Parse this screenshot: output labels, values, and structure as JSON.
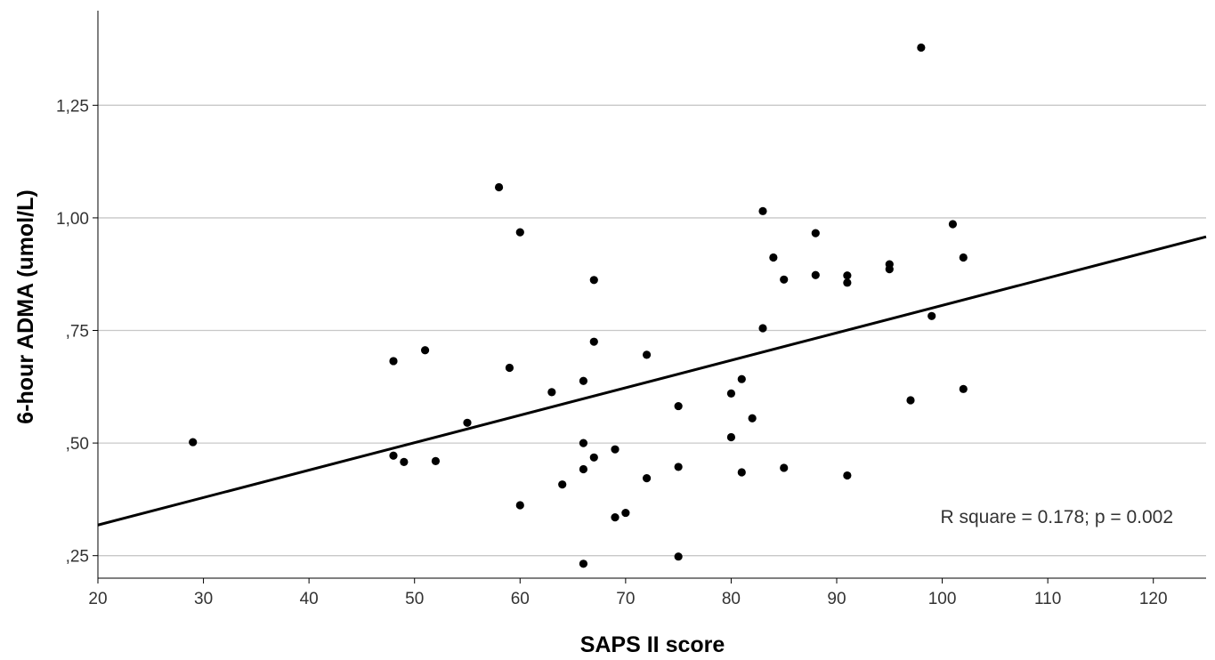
{
  "chart_data": {
    "type": "scatter",
    "xlabel": "SAPS II score",
    "ylabel": "6-hour ADMA (umol/L)",
    "xlim": [
      20,
      125
    ],
    "ylim": [
      0.2,
      1.46
    ],
    "x_ticks": [
      20,
      30,
      40,
      50,
      60,
      70,
      80,
      90,
      100,
      110,
      120
    ],
    "x_tick_labels": [
      "20",
      "30",
      "40",
      "50",
      "60",
      "70",
      "80",
      "90",
      "100",
      "110",
      "120"
    ],
    "y_ticks": [
      0.25,
      0.5,
      0.75,
      1.0,
      1.25
    ],
    "y_tick_labels": [
      ",25",
      ",50",
      ",75",
      "1,00",
      "1,25"
    ],
    "grid": "horizontal",
    "annotation": "R square = 0.178; p = 0.002",
    "fit_line": {
      "x": [
        20,
        125
      ],
      "y": [
        0.318,
        0.958
      ]
    },
    "points": [
      [
        29,
        0.502
      ],
      [
        48,
        0.682
      ],
      [
        48,
        0.472
      ],
      [
        49,
        0.458
      ],
      [
        51,
        0.706
      ],
      [
        52,
        0.46
      ],
      [
        55,
        0.545
      ],
      [
        58,
        1.068
      ],
      [
        59,
        0.667
      ],
      [
        60,
        0.968
      ],
      [
        60,
        0.362
      ],
      [
        63,
        0.613
      ],
      [
        64,
        0.408
      ],
      [
        66,
        0.638
      ],
      [
        66,
        0.5
      ],
      [
        66,
        0.442
      ],
      [
        66,
        0.232
      ],
      [
        67,
        0.862
      ],
      [
        67,
        0.725
      ],
      [
        67,
        0.468
      ],
      [
        69,
        0.486
      ],
      [
        69,
        0.335
      ],
      [
        70,
        0.345
      ],
      [
        72,
        0.696
      ],
      [
        72,
        0.422
      ],
      [
        75,
        0.582
      ],
      [
        75,
        0.447
      ],
      [
        75,
        0.248
      ],
      [
        80,
        0.61
      ],
      [
        80,
        0.513
      ],
      [
        81,
        0.642
      ],
      [
        81,
        0.435
      ],
      [
        82,
        0.555
      ],
      [
        83,
        1.015
      ],
      [
        83,
        0.755
      ],
      [
        84,
        0.912
      ],
      [
        85,
        0.863
      ],
      [
        85,
        0.445
      ],
      [
        88,
        0.966
      ],
      [
        88,
        0.873
      ],
      [
        91,
        0.872
      ],
      [
        91,
        0.856
      ],
      [
        91,
        0.428
      ],
      [
        95,
        0.897
      ],
      [
        95,
        0.886
      ],
      [
        97,
        0.595
      ],
      [
        98,
        1.378
      ],
      [
        99,
        0.782
      ],
      [
        101,
        0.986
      ],
      [
        102,
        0.912
      ],
      [
        102,
        0.62
      ]
    ]
  }
}
